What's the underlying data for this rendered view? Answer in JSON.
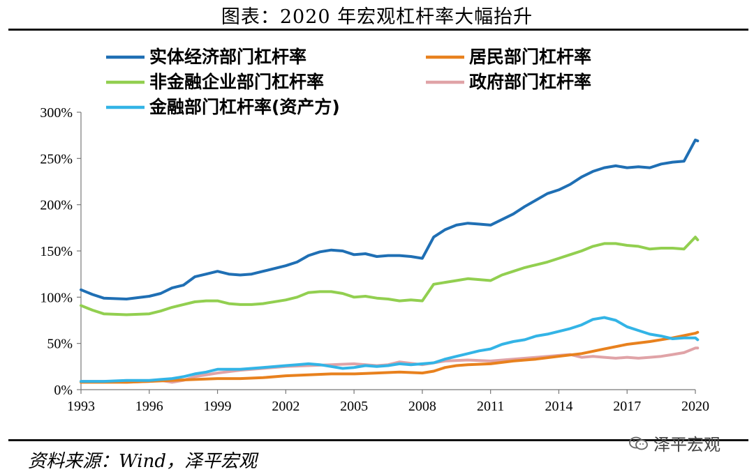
{
  "title": "图表：2020 年宏观杠杆率大幅抬升",
  "source": "资料来源：Wind，泽平宏观",
  "watermark": "泽平宏观",
  "chart_data": {
    "type": "line",
    "ylim": [
      0,
      300
    ],
    "xlim": [
      1993,
      2020
    ],
    "y_ticks": [
      0,
      50,
      100,
      150,
      200,
      250,
      300
    ],
    "y_tick_labels": [
      "0%",
      "50%",
      "100%",
      "150%",
      "200%",
      "250%",
      "300%"
    ],
    "x_ticks": [
      1993,
      1996,
      1999,
      2002,
      2005,
      2008,
      2011,
      2014,
      2017,
      2020
    ],
    "x_tick_labels": [
      "1993",
      "1996",
      "1999",
      "2002",
      "2005",
      "2008",
      "2011",
      "2014",
      "2017",
      "2020"
    ],
    "grid": false,
    "series": [
      {
        "name": "实体经济部门杠杆率",
        "color": "#1f6fb4",
        "x": [
          1993,
          1993.5,
          1994,
          1995,
          1996,
          1996.5,
          1997,
          1997.5,
          1998,
          1998.5,
          1999,
          1999.5,
          2000,
          2000.5,
          2001,
          2002,
          2002.5,
          2003,
          2003.5,
          2004,
          2004.5,
          2005,
          2005.5,
          2006,
          2006.5,
          2007,
          2007.5,
          2008,
          2008.5,
          2009,
          2009.5,
          2010,
          2010.5,
          2011,
          2011.5,
          2012,
          2012.5,
          2013,
          2013.5,
          2014,
          2014.5,
          2015,
          2015.5,
          2016,
          2016.5,
          2017,
          2017.5,
          2018,
          2018.5,
          2019,
          2019.5,
          2020,
          2020.1
        ],
        "values": [
          108,
          103,
          99,
          98,
          101,
          104,
          110,
          113,
          122,
          125,
          128,
          125,
          124,
          125,
          128,
          134,
          138,
          145,
          149,
          151,
          150,
          146,
          147,
          144,
          145,
          145,
          144,
          142,
          165,
          173,
          178,
          180,
          179,
          178,
          184,
          190,
          198,
          205,
          212,
          216,
          222,
          230,
          236,
          240,
          242,
          240,
          241,
          240,
          244,
          246,
          247,
          270,
          269
        ]
      },
      {
        "name": "居民部门杠杆率",
        "color": "#e8811e",
        "x": [
          1993,
          1994,
          1995,
          1996,
          1997,
          1998,
          1999,
          2000,
          2001,
          2002,
          2003,
          2004,
          2005,
          2006,
          2007,
          2008,
          2008.5,
          2009,
          2009.5,
          2010,
          2011,
          2012,
          2013,
          2014,
          2015,
          2016,
          2017,
          2018,
          2019,
          2020,
          2020.1
        ],
        "values": [
          8,
          8,
          8,
          9,
          10,
          11,
          12,
          12,
          13,
          15,
          16,
          17,
          17,
          18,
          19,
          18,
          20,
          24,
          26,
          27,
          28,
          31,
          33,
          36,
          39,
          44,
          49,
          52,
          56,
          61,
          62
        ]
      },
      {
        "name": "非金融企业部门杠杆率",
        "color": "#92cf50",
        "x": [
          1993,
          1993.5,
          1994,
          1995,
          1996,
          1996.5,
          1997,
          1997.5,
          1998,
          1998.5,
          1999,
          1999.5,
          2000,
          2000.5,
          2001,
          2002,
          2002.5,
          2003,
          2003.5,
          2004,
          2004.5,
          2005,
          2005.5,
          2006,
          2006.5,
          2007,
          2007.5,
          2008,
          2008.5,
          2009,
          2009.5,
          2010,
          2010.5,
          2011,
          2011.5,
          2012,
          2012.5,
          2013,
          2013.5,
          2014,
          2014.5,
          2015,
          2015.5,
          2016,
          2016.5,
          2017,
          2017.5,
          2018,
          2018.5,
          2019,
          2019.5,
          2020,
          2020.1
        ],
        "values": [
          91,
          86,
          82,
          81,
          82,
          85,
          89,
          92,
          95,
          96,
          96,
          93,
          92,
          92,
          93,
          97,
          100,
          105,
          106,
          106,
          104,
          100,
          101,
          99,
          98,
          96,
          97,
          96,
          114,
          116,
          118,
          120,
          119,
          118,
          124,
          128,
          132,
          135,
          138,
          142,
          146,
          150,
          155,
          158,
          158,
          156,
          155,
          152,
          153,
          153,
          152,
          165,
          162
        ]
      },
      {
        "name": "政府部门杠杆率",
        "color": "#e0a3a7",
        "x": [
          1993,
          1994,
          1995,
          1996,
          1996.5,
          1997,
          1997.5,
          1998,
          1999,
          2000,
          2001,
          2002,
          2003,
          2004,
          2005,
          2006,
          2006.5,
          2007,
          2008,
          2008.5,
          2009,
          2010,
          2011,
          2012,
          2013,
          2014,
          2014.5,
          2015,
          2015.5,
          2016,
          2016.5,
          2017,
          2017.5,
          2018,
          2018.5,
          2019,
          2019.5,
          2020,
          2020.1
        ],
        "values": [
          9,
          9,
          8,
          9,
          10,
          8,
          10,
          14,
          18,
          21,
          23,
          25,
          26,
          27,
          28,
          26,
          27,
          30,
          27,
          29,
          31,
          32,
          31,
          33,
          35,
          37,
          38,
          35,
          36,
          35,
          34,
          35,
          34,
          35,
          36,
          38,
          40,
          45,
          45
        ]
      },
      {
        "name": "金融部门杠杆率(资产方)",
        "color": "#33b4e6",
        "x": [
          1993,
          1994,
          1995,
          1996,
          1996.5,
          1997,
          1997.5,
          1998,
          1998.5,
          1999,
          2000,
          2001,
          2002,
          2002.5,
          2003,
          2003.5,
          2004,
          2004.5,
          2005,
          2005.5,
          2006,
          2006.5,
          2007,
          2007.5,
          2008,
          2008.5,
          2009,
          2009.5,
          2010,
          2010.5,
          2011,
          2011.5,
          2012,
          2012.5,
          2013,
          2013.5,
          2014,
          2014.5,
          2015,
          2015.5,
          2016,
          2016.5,
          2017,
          2017.5,
          2018,
          2018.5,
          2019,
          2019.5,
          2020,
          2020.1
        ],
        "values": [
          9,
          9,
          10,
          10,
          11,
          12,
          14,
          17,
          19,
          22,
          22,
          24,
          26,
          27,
          28,
          27,
          25,
          23,
          24,
          26,
          25,
          26,
          28,
          27,
          28,
          29,
          33,
          36,
          39,
          42,
          44,
          49,
          52,
          54,
          58,
          60,
          63,
          66,
          70,
          76,
          78,
          75,
          68,
          64,
          60,
          58,
          55,
          56,
          56,
          54
        ]
      }
    ]
  },
  "legend_layout": [
    {
      "series_index": 0
    },
    {
      "series_index": 1
    },
    {
      "series_index": 2
    },
    {
      "series_index": 3
    },
    {
      "series_index": 4
    }
  ]
}
